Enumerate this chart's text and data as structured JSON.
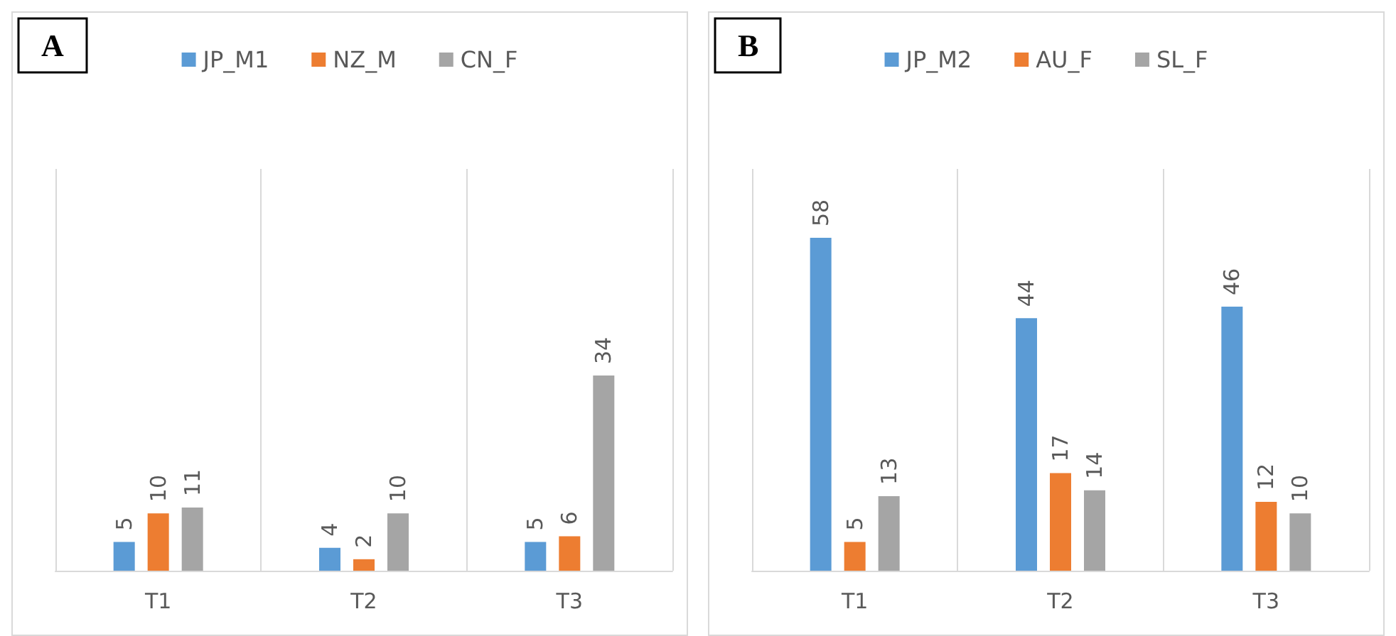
{
  "chart_data": [
    {
      "type": "bar",
      "title": "A",
      "categories": [
        "T1",
        "T2",
        "T3"
      ],
      "series": [
        {
          "name": "JP_M1",
          "color": "#5b9bd5",
          "values": [
            5,
            4,
            5
          ]
        },
        {
          "name": "NZ_M",
          "color": "#ed7d31",
          "values": [
            10,
            2,
            6
          ]
        },
        {
          "name": "CN_F",
          "color": "#a5a5a5",
          "values": [
            11,
            10,
            34
          ]
        }
      ],
      "ylim": [
        0,
        70
      ],
      "tick_labels": "x",
      "data_labels": true,
      "grid": "x",
      "legend": "top"
    },
    {
      "type": "bar",
      "title": "B",
      "categories": [
        "T1",
        "T2",
        "T3"
      ],
      "series": [
        {
          "name": "JP_M2",
          "color": "#5b9bd5",
          "values": [
            58,
            44,
            46
          ]
        },
        {
          "name": "AU_F",
          "color": "#ed7d31",
          "values": [
            5,
            17,
            12
          ]
        },
        {
          "name": "SL_F",
          "color": "#a5a5a5",
          "values": [
            13,
            14,
            10
          ]
        }
      ],
      "ylim": [
        0,
        70
      ],
      "tick_labels": "x",
      "data_labels": true,
      "grid": "x",
      "legend": "top"
    }
  ]
}
